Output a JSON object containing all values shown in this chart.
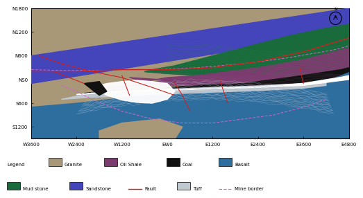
{
  "xlim": [
    -3600,
    4800
  ],
  "ylim": [
    -1500,
    1800
  ],
  "xticks": [
    -3600,
    -2400,
    -1200,
    0,
    1200,
    2400,
    3600,
    4800
  ],
  "xticklabels": [
    "W3600",
    "W2400",
    "W1200",
    "EW0",
    "E1200",
    "E2400",
    "E3600",
    "E4800"
  ],
  "yticks": [
    1800,
    1200,
    600,
    0,
    -600,
    -1200
  ],
  "yticklabels": [
    "N1800",
    "N1200",
    "N600",
    "NS0",
    "S600",
    "S1200"
  ],
  "colors": {
    "granite": "#A89878",
    "sandstone": "#4444BB",
    "oil_shale": "#7B3B6E",
    "mud_stone": "#1A6B3C",
    "coal": "#111111",
    "basalt": "#2E6E9E",
    "tuff": "#C0C8D0",
    "fault": "#CC2222",
    "mine_border": "#CC66CC",
    "white_layer": "#FFFFFF"
  }
}
